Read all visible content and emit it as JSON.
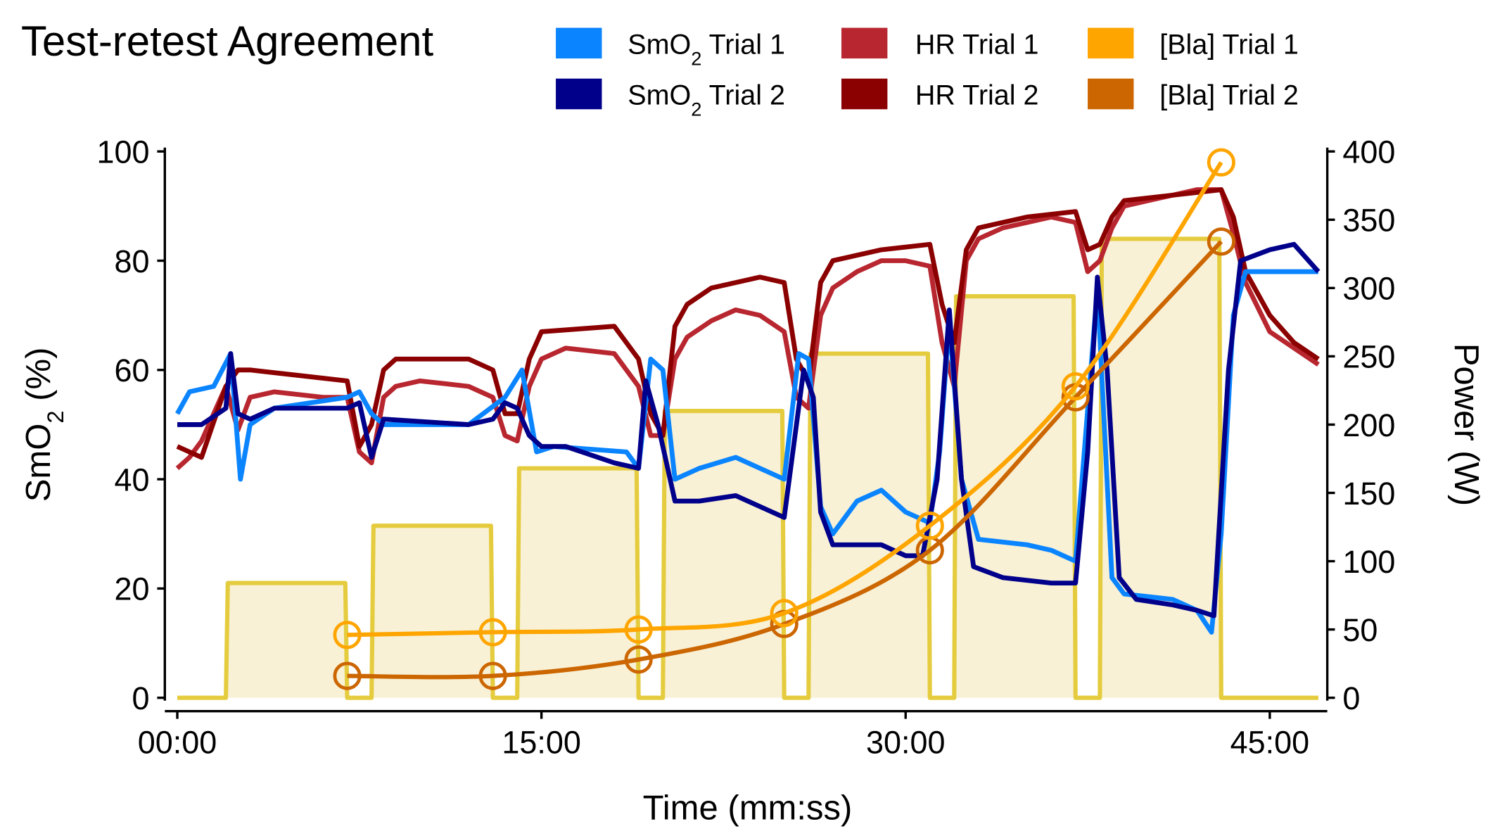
{
  "chart_data": {
    "type": "line",
    "title": "Test-retest Agreement",
    "xlabel": "Time (mm:ss)",
    "ylabel_left": "SmO2 (%)",
    "ylabel_right": "Power (W)",
    "xlim": [
      0,
      47
    ],
    "ylim_left": [
      0,
      100
    ],
    "ylim_right": [
      0,
      400
    ],
    "x_ticks": [
      {
        "v": 0,
        "label": "00:00"
      },
      {
        "v": 15,
        "label": "15:00"
      },
      {
        "v": 30,
        "label": "30:00"
      },
      {
        "v": 45,
        "label": "45:00"
      }
    ],
    "y_ticks_left": [
      0,
      20,
      40,
      60,
      80,
      100
    ],
    "y_ticks_right": [
      0,
      50,
      100,
      150,
      200,
      250,
      300,
      350,
      400
    ],
    "grid": false,
    "legend_placement": "top",
    "legend": [
      {
        "key": "smo2_t1",
        "label": "SmO",
        "sub": "2",
        "rest": " Trial 1",
        "color": "#0a84ff"
      },
      {
        "key": "smo2_t2",
        "label": "SmO",
        "sub": "2",
        "rest": " Trial 2",
        "color": "#00008b"
      },
      {
        "key": "hr_t1",
        "label": "HR Trial 1",
        "color": "#b8262f"
      },
      {
        "key": "hr_t2",
        "label": "HR Trial 2",
        "color": "#8b0000"
      },
      {
        "key": "bla_t1",
        "label": "[Bla] Trial 1",
        "color": "#ffa500"
      },
      {
        "key": "bla_t2",
        "label": "[Bla] Trial 2",
        "color": "#cc6600"
      }
    ],
    "power": {
      "color": "#e5cc3f",
      "fill": "#f8f1d6",
      "stages": [
        {
          "start": 2,
          "end": 7,
          "w": 84
        },
        {
          "start": 8,
          "end": 13,
          "w": 126
        },
        {
          "start": 14,
          "end": 19,
          "w": 168
        },
        {
          "start": 20,
          "end": 25,
          "w": 210
        },
        {
          "start": 26,
          "end": 31,
          "w": 252
        },
        {
          "start": 32,
          "end": 37,
          "w": 294
        },
        {
          "start": 38,
          "end": 43,
          "w": 336
        }
      ]
    },
    "series": {
      "smo2_t1": [
        [
          0,
          52
        ],
        [
          0.5,
          56
        ],
        [
          1.5,
          57
        ],
        [
          2.2,
          63
        ],
        [
          2.6,
          40
        ],
        [
          3,
          50
        ],
        [
          4,
          53
        ],
        [
          7,
          55
        ],
        [
          7.5,
          56
        ],
        [
          8,
          52
        ],
        [
          8.5,
          50
        ],
        [
          12,
          50
        ],
        [
          13.5,
          55
        ],
        [
          14.2,
          60
        ],
        [
          14.8,
          45
        ],
        [
          15.5,
          46
        ],
        [
          18.5,
          45
        ],
        [
          19,
          42
        ],
        [
          19.5,
          62
        ],
        [
          20,
          60
        ],
        [
          20.5,
          40
        ],
        [
          21.5,
          42
        ],
        [
          23,
          44
        ],
        [
          24.5,
          41
        ],
        [
          25,
          40
        ],
        [
          25.6,
          63
        ],
        [
          26,
          62
        ],
        [
          26.5,
          35
        ],
        [
          27,
          30
        ],
        [
          28,
          36
        ],
        [
          29,
          38
        ],
        [
          30,
          34
        ],
        [
          31,
          32
        ],
        [
          31.4,
          45
        ],
        [
          31.8,
          69
        ],
        [
          32.3,
          40
        ],
        [
          33,
          29
        ],
        [
          35,
          28
        ],
        [
          36,
          27
        ],
        [
          37,
          25
        ],
        [
          37.9,
          75
        ],
        [
          38.5,
          22
        ],
        [
          39,
          19
        ],
        [
          41,
          18
        ],
        [
          42,
          16
        ],
        [
          42.6,
          12
        ],
        [
          43,
          30
        ],
        [
          43.5,
          70
        ],
        [
          44,
          78
        ],
        [
          45,
          78
        ],
        [
          47,
          78
        ]
      ],
      "smo2_t2": [
        [
          0,
          50
        ],
        [
          1,
          50
        ],
        [
          2,
          53
        ],
        [
          2.2,
          63
        ],
        [
          2.5,
          52
        ],
        [
          3,
          51
        ],
        [
          4,
          53
        ],
        [
          7,
          53
        ],
        [
          7.5,
          54
        ],
        [
          8,
          44
        ],
        [
          8.5,
          51
        ],
        [
          12,
          50
        ],
        [
          13,
          51
        ],
        [
          13.5,
          54
        ],
        [
          14,
          53
        ],
        [
          14.5,
          48
        ],
        [
          15,
          46
        ],
        [
          16,
          46
        ],
        [
          18,
          43
        ],
        [
          19,
          42
        ],
        [
          19.3,
          58
        ],
        [
          19.8,
          50
        ],
        [
          20.5,
          36
        ],
        [
          21.5,
          36
        ],
        [
          23,
          37
        ],
        [
          24.5,
          34
        ],
        [
          25,
          33
        ],
        [
          25.8,
          60
        ],
        [
          26.2,
          55
        ],
        [
          26.5,
          34
        ],
        [
          27,
          28
        ],
        [
          29,
          28
        ],
        [
          30,
          26
        ],
        [
          30.7,
          26
        ],
        [
          31.3,
          40
        ],
        [
          31.8,
          71
        ],
        [
          32.3,
          40
        ],
        [
          32.8,
          24
        ],
        [
          34,
          22
        ],
        [
          36,
          21
        ],
        [
          37,
          21
        ],
        [
          37.5,
          45
        ],
        [
          37.9,
          77
        ],
        [
          38.3,
          60
        ],
        [
          38.8,
          22
        ],
        [
          39.5,
          18
        ],
        [
          41,
          17
        ],
        [
          42,
          16
        ],
        [
          42.7,
          15
        ],
        [
          43.3,
          60
        ],
        [
          43.8,
          80
        ],
        [
          45,
          82
        ],
        [
          46,
          83
        ],
        [
          47,
          78
        ]
      ],
      "hr_t1": [
        [
          0,
          42
        ],
        [
          0.5,
          44
        ],
        [
          1,
          47
        ],
        [
          2,
          57
        ],
        [
          2.5,
          49
        ],
        [
          3,
          55
        ],
        [
          4,
          56
        ],
        [
          6,
          55
        ],
        [
          7,
          55
        ],
        [
          7.5,
          45
        ],
        [
          8,
          43
        ],
        [
          8.5,
          55
        ],
        [
          9,
          57
        ],
        [
          10,
          58
        ],
        [
          12,
          57
        ],
        [
          13,
          55
        ],
        [
          13.5,
          48
        ],
        [
          14,
          47
        ],
        [
          14.5,
          57
        ],
        [
          15,
          62
        ],
        [
          16,
          64
        ],
        [
          18,
          63
        ],
        [
          19,
          57
        ],
        [
          19.5,
          48
        ],
        [
          20,
          48
        ],
        [
          20.5,
          62
        ],
        [
          21,
          66
        ],
        [
          22,
          69
        ],
        [
          23,
          71
        ],
        [
          24,
          70
        ],
        [
          25,
          67
        ],
        [
          25.5,
          55
        ],
        [
          26,
          53
        ],
        [
          26.5,
          70
        ],
        [
          27,
          75
        ],
        [
          28,
          78
        ],
        [
          29,
          80
        ],
        [
          30,
          80
        ],
        [
          31,
          79
        ],
        [
          31.5,
          65
        ],
        [
          32,
          57
        ],
        [
          32.5,
          80
        ],
        [
          33,
          84
        ],
        [
          34,
          86
        ],
        [
          35,
          87
        ],
        [
          36,
          88
        ],
        [
          37,
          87
        ],
        [
          37.5,
          78
        ],
        [
          38,
          80
        ],
        [
          38.5,
          86
        ],
        [
          39,
          90
        ],
        [
          40,
          91
        ],
        [
          41,
          92
        ],
        [
          42,
          93
        ],
        [
          43,
          93
        ],
        [
          43.5,
          85
        ],
        [
          44,
          76
        ],
        [
          45,
          67
        ],
        [
          46,
          64
        ],
        [
          47,
          61
        ]
      ],
      "hr_t2": [
        [
          0,
          46
        ],
        [
          1,
          44
        ],
        [
          2,
          57
        ],
        [
          2.5,
          60
        ],
        [
          3,
          60
        ],
        [
          5,
          59
        ],
        [
          7,
          58
        ],
        [
          7.5,
          46
        ],
        [
          8,
          50
        ],
        [
          8.5,
          60
        ],
        [
          9,
          62
        ],
        [
          12,
          62
        ],
        [
          13,
          60
        ],
        [
          13.5,
          52
        ],
        [
          14,
          52
        ],
        [
          14.5,
          62
        ],
        [
          15,
          67
        ],
        [
          18,
          68
        ],
        [
          19,
          62
        ],
        [
          19.5,
          52
        ],
        [
          20,
          48
        ],
        [
          20.5,
          68
        ],
        [
          21,
          72
        ],
        [
          22,
          75
        ],
        [
          24,
          77
        ],
        [
          25,
          76
        ],
        [
          25.5,
          62
        ],
        [
          26,
          58
        ],
        [
          26.5,
          76
        ],
        [
          27,
          80
        ],
        [
          29,
          82
        ],
        [
          31,
          83
        ],
        [
          31.5,
          72
        ],
        [
          32,
          65
        ],
        [
          32.5,
          82
        ],
        [
          33,
          86
        ],
        [
          35,
          88
        ],
        [
          37,
          89
        ],
        [
          37.5,
          82
        ],
        [
          38,
          83
        ],
        [
          38.5,
          88
        ],
        [
          39,
          91
        ],
        [
          41,
          92
        ],
        [
          43,
          93
        ],
        [
          43.5,
          88
        ],
        [
          44,
          78
        ],
        [
          45,
          70
        ],
        [
          46,
          65
        ],
        [
          47,
          62
        ]
      ],
      "bla_t1": [
        [
          7,
          11.5
        ],
        [
          13,
          12
        ],
        [
          19,
          12.5
        ],
        [
          25,
          15.5
        ],
        [
          31,
          31.5
        ],
        [
          37,
          57
        ],
        [
          43,
          98
        ]
      ],
      "bla_t2": [
        [
          7,
          4
        ],
        [
          13,
          4
        ],
        [
          19,
          7
        ],
        [
          25,
          13.5
        ],
        [
          31,
          27
        ],
        [
          37,
          55
        ],
        [
          43,
          83.5
        ]
      ]
    }
  }
}
